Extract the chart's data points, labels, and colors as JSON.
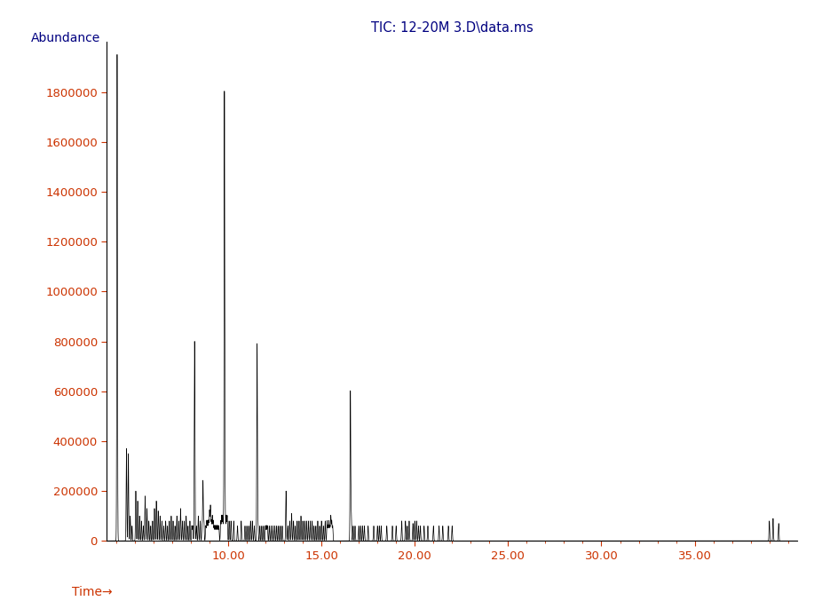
{
  "title": "TIC: 12-20M 3.D\\data.ms",
  "title_color": "#000080",
  "ylabel": "Abundance",
  "xlabel": "Time→",
  "ylabel_color": "#000080",
  "xlabel_color": "#cc3300",
  "tick_color_x": "#cc3300",
  "tick_color_y": "#cc3300",
  "xlim": [
    3.5,
    40.5
  ],
  "ylim": [
    0,
    2000000
  ],
  "yticks": [
    0,
    200000,
    400000,
    600000,
    800000,
    1000000,
    1200000,
    1400000,
    1600000,
    1800000
  ],
  "xticks": [
    10.0,
    15.0,
    20.0,
    25.0,
    30.0,
    35.0
  ],
  "background_color": "#ffffff",
  "spine_color": "#000000",
  "peaks": [
    [
      4.05,
      1950000
    ],
    [
      4.55,
      370000
    ],
    [
      4.65,
      350000
    ],
    [
      4.75,
      100000
    ],
    [
      4.85,
      60000
    ],
    [
      5.05,
      200000
    ],
    [
      5.15,
      160000
    ],
    [
      5.25,
      100000
    ],
    [
      5.35,
      80000
    ],
    [
      5.45,
      60000
    ],
    [
      5.55,
      180000
    ],
    [
      5.65,
      130000
    ],
    [
      5.75,
      80000
    ],
    [
      5.85,
      60000
    ],
    [
      5.95,
      80000
    ],
    [
      6.05,
      130000
    ],
    [
      6.15,
      160000
    ],
    [
      6.25,
      120000
    ],
    [
      6.35,
      100000
    ],
    [
      6.45,
      80000
    ],
    [
      6.55,
      60000
    ],
    [
      6.65,
      80000
    ],
    [
      6.75,
      60000
    ],
    [
      6.85,
      80000
    ],
    [
      6.95,
      100000
    ],
    [
      7.05,
      80000
    ],
    [
      7.15,
      60000
    ],
    [
      7.25,
      100000
    ],
    [
      7.35,
      80000
    ],
    [
      7.45,
      130000
    ],
    [
      7.55,
      80000
    ],
    [
      7.65,
      80000
    ],
    [
      7.75,
      100000
    ],
    [
      7.85,
      60000
    ],
    [
      7.95,
      80000
    ],
    [
      8.05,
      60000
    ],
    [
      8.1,
      60000
    ],
    [
      8.2,
      800000
    ],
    [
      8.3,
      60000
    ],
    [
      8.4,
      100000
    ],
    [
      8.5,
      80000
    ],
    [
      8.6,
      60000
    ],
    [
      8.65,
      240000
    ],
    [
      8.7,
      80000
    ],
    [
      8.8,
      60000
    ],
    [
      8.85,
      80000
    ],
    [
      8.9,
      80000
    ],
    [
      8.95,
      80000
    ],
    [
      9.0,
      120000
    ],
    [
      9.05,
      140000
    ],
    [
      9.1,
      80000
    ],
    [
      9.15,
      100000
    ],
    [
      9.2,
      80000
    ],
    [
      9.25,
      60000
    ],
    [
      9.3,
      60000
    ],
    [
      9.35,
      60000
    ],
    [
      9.4,
      60000
    ],
    [
      9.45,
      60000
    ],
    [
      9.5,
      60000
    ],
    [
      9.6,
      80000
    ],
    [
      9.65,
      100000
    ],
    [
      9.7,
      100000
    ],
    [
      9.75,
      80000
    ],
    [
      9.8,
      1800000
    ],
    [
      9.85,
      80000
    ],
    [
      9.9,
      100000
    ],
    [
      9.95,
      100000
    ],
    [
      10.05,
      80000
    ],
    [
      10.15,
      80000
    ],
    [
      10.3,
      80000
    ],
    [
      10.5,
      60000
    ],
    [
      10.7,
      80000
    ],
    [
      10.9,
      60000
    ],
    [
      11.0,
      60000
    ],
    [
      11.1,
      60000
    ],
    [
      11.2,
      80000
    ],
    [
      11.3,
      80000
    ],
    [
      11.4,
      60000
    ],
    [
      11.55,
      790000
    ],
    [
      11.6,
      60000
    ],
    [
      11.7,
      60000
    ],
    [
      11.8,
      60000
    ],
    [
      11.9,
      60000
    ],
    [
      12.0,
      60000
    ],
    [
      12.05,
      60000
    ],
    [
      12.1,
      60000
    ],
    [
      12.2,
      60000
    ],
    [
      12.3,
      60000
    ],
    [
      12.4,
      60000
    ],
    [
      12.5,
      60000
    ],
    [
      12.6,
      60000
    ],
    [
      12.7,
      60000
    ],
    [
      12.8,
      60000
    ],
    [
      12.9,
      60000
    ],
    [
      13.1,
      200000
    ],
    [
      13.2,
      60000
    ],
    [
      13.3,
      80000
    ],
    [
      13.4,
      110000
    ],
    [
      13.5,
      80000
    ],
    [
      13.6,
      60000
    ],
    [
      13.7,
      80000
    ],
    [
      13.8,
      80000
    ],
    [
      13.9,
      100000
    ],
    [
      14.0,
      80000
    ],
    [
      14.1,
      80000
    ],
    [
      14.2,
      80000
    ],
    [
      14.3,
      80000
    ],
    [
      14.4,
      80000
    ],
    [
      14.5,
      80000
    ],
    [
      14.6,
      60000
    ],
    [
      14.7,
      60000
    ],
    [
      14.8,
      80000
    ],
    [
      14.9,
      60000
    ],
    [
      15.0,
      80000
    ],
    [
      15.1,
      60000
    ],
    [
      15.2,
      80000
    ],
    [
      15.3,
      80000
    ],
    [
      15.35,
      60000
    ],
    [
      15.4,
      80000
    ],
    [
      15.45,
      60000
    ],
    [
      15.5,
      100000
    ],
    [
      15.55,
      80000
    ],
    [
      15.6,
      60000
    ],
    [
      16.55,
      600000
    ],
    [
      16.6,
      100000
    ],
    [
      16.7,
      60000
    ],
    [
      16.8,
      60000
    ],
    [
      17.0,
      60000
    ],
    [
      17.1,
      60000
    ],
    [
      17.2,
      60000
    ],
    [
      17.3,
      60000
    ],
    [
      17.5,
      60000
    ],
    [
      17.8,
      60000
    ],
    [
      18.0,
      60000
    ],
    [
      18.1,
      60000
    ],
    [
      18.2,
      60000
    ],
    [
      18.5,
      60000
    ],
    [
      18.8,
      60000
    ],
    [
      19.0,
      60000
    ],
    [
      19.3,
      80000
    ],
    [
      19.5,
      80000
    ],
    [
      19.6,
      60000
    ],
    [
      19.7,
      80000
    ],
    [
      19.9,
      70000
    ],
    [
      20.0,
      80000
    ],
    [
      20.1,
      80000
    ],
    [
      20.2,
      60000
    ],
    [
      20.3,
      60000
    ],
    [
      20.5,
      60000
    ],
    [
      20.7,
      60000
    ],
    [
      21.0,
      60000
    ],
    [
      21.3,
      60000
    ],
    [
      21.5,
      60000
    ],
    [
      21.8,
      60000
    ],
    [
      22.0,
      60000
    ],
    [
      39.0,
      80000
    ],
    [
      39.2,
      90000
    ],
    [
      39.5,
      70000
    ]
  ]
}
